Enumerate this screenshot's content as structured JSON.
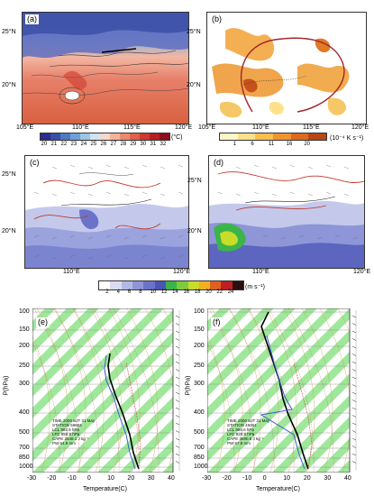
{
  "panels": {
    "a": {
      "label": "(a)"
    },
    "b": {
      "label": "(b)"
    },
    "c": {
      "label": "(c)"
    },
    "d": {
      "label": "(d)"
    },
    "e": {
      "label": "(e)"
    },
    "f": {
      "label": "(f)"
    }
  },
  "map_ticks": {
    "lat_top": [
      "25°N",
      "20°N"
    ],
    "lon_top": [
      "105°E",
      "110°E",
      "115°E",
      "120°E"
    ],
    "lon_mid": [
      "110°E",
      "120°E"
    ]
  },
  "colorbar_a": {
    "labels": [
      "20",
      "21",
      "22",
      "23",
      "24",
      "25",
      "26",
      "27",
      "28",
      "29",
      "30",
      "31",
      "32"
    ],
    "unit": "(°C)",
    "colors": [
      "#2c2d8f",
      "#3850a8",
      "#4f79c4",
      "#6ea1d8",
      "#9cc6e6",
      "#cfe3f1",
      "#f5d9cc",
      "#f3b39a",
      "#ec8a6d",
      "#e0614a",
      "#cf3a30",
      "#b51f24",
      "#8e0f18"
    ]
  },
  "colorbar_b": {
    "labels": [
      "1",
      "6",
      "11",
      "16",
      "20"
    ],
    "unit": "(10⁻⁴ K s⁻¹)",
    "colors": [
      "#fff6c8",
      "#ffe08a",
      "#f9bf4f",
      "#ef9530",
      "#dd6a1f",
      "#b94715"
    ]
  },
  "colorbar_cd": {
    "labels": [
      "2",
      "4",
      "6",
      "8",
      "10",
      "12",
      "14",
      "16",
      "18",
      "20",
      "22",
      "24"
    ],
    "unit": "(m s⁻¹)",
    "colors": [
      "#ffffff",
      "#d9dcf2",
      "#b3b9e6",
      "#8e96d8",
      "#6a73c9",
      "#4d55b4",
      "#3bb54a",
      "#7fcb3e",
      "#c8dc2a",
      "#f2b020",
      "#e06020",
      "#c02020",
      "#2a0f0f"
    ]
  },
  "skewt": {
    "ylabel": "P(hPa)",
    "xlabel": "Temperature(C)",
    "p_ticks": [
      "100",
      "150",
      "200",
      "250",
      "300",
      "400",
      "500",
      "700",
      "850",
      "1000"
    ],
    "t_ticks": [
      "-30",
      "-20",
      "-10",
      "0",
      "10",
      "20",
      "30",
      "40"
    ],
    "e_info": [
      "TIME  2000 BJT 31 May",
      "STATION  59663",
      "LCL  992.9 hPa",
      "LFC  950.8 hPa",
      "CAPE  2548.1 J kg⁻¹",
      "PW  64.9 mm"
    ],
    "f_info": [
      "TIME  2000 BJT 31 May",
      "STATION  45004",
      "LCL  956.6 hPa",
      "LFC  920.8 hPa",
      "CAPE  3690.8 J kg⁻¹",
      "PW  67.9 mm"
    ]
  }
}
